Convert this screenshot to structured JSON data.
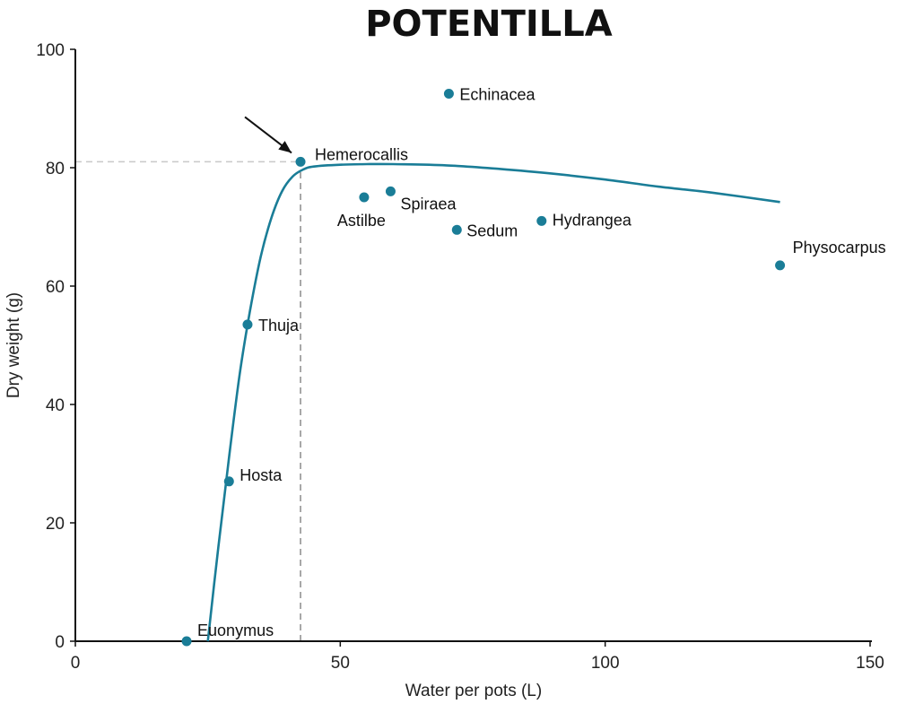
{
  "chart_data": {
    "type": "scatter",
    "title": "POTENTILLA",
    "xlabel": "Water per pots (L)",
    "ylabel": "Dry weight (g)",
    "xlim": [
      0,
      150
    ],
    "ylim": [
      0,
      100
    ],
    "x_ticks": [
      0,
      50,
      100,
      150
    ],
    "y_ticks": [
      0,
      20,
      40,
      60,
      80,
      100
    ],
    "grid": false,
    "points": [
      {
        "label": "Euonymus",
        "x": 21,
        "y": 0
      },
      {
        "label": "Hosta",
        "x": 29,
        "y": 27
      },
      {
        "label": "Thuja",
        "x": 32.5,
        "y": 53.5
      },
      {
        "label": "Hemerocallis",
        "x": 42.5,
        "y": 81
      },
      {
        "label": "Astilbe",
        "x": 54.5,
        "y": 75
      },
      {
        "label": "Spiraea",
        "x": 59.5,
        "y": 76
      },
      {
        "label": "Echinacea",
        "x": 70.5,
        "y": 92.5
      },
      {
        "label": "Sedum",
        "x": 72,
        "y": 69.5
      },
      {
        "label": "Hydrangea",
        "x": 88,
        "y": 71
      },
      {
        "label": "Physocarpus",
        "x": 133,
        "y": 63.5
      }
    ],
    "fit_curve": {
      "x": [
        25,
        27,
        29,
        31,
        33,
        35,
        37,
        39,
        41,
        43,
        45,
        50,
        55,
        60,
        70,
        80,
        90,
        100,
        110,
        120,
        133
      ],
      "y": [
        0,
        16,
        31,
        45,
        56,
        65,
        71.5,
        76,
        78.5,
        79.7,
        80.2,
        80.5,
        80.6,
        80.6,
        80.4,
        79.8,
        79,
        78,
        76.8,
        75.8,
        74.2
      ]
    },
    "optimum": {
      "x": 42.5,
      "y": 81
    },
    "colors": {
      "series": "#1a7d97",
      "reference_line": "#8c8c8c",
      "axis": "#111111"
    }
  }
}
